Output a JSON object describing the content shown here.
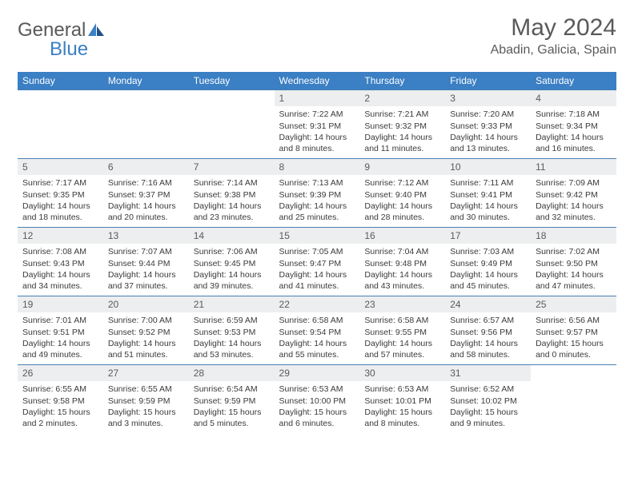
{
  "brand": {
    "general": "General",
    "blue": "Blue",
    "general_color": "#58595b",
    "blue_color": "#3b7fc4"
  },
  "header": {
    "title": "May 2024",
    "location": "Abadin, Galicia, Spain"
  },
  "colors": {
    "header_bg": "#3b7fc4",
    "header_fg": "#ffffff",
    "daynum_bg": "#edeeef",
    "daynum_fg": "#5a5a5a",
    "row_border": "#4a7fb5",
    "text": "#3a3a3a",
    "background": "#ffffff"
  },
  "typography": {
    "title_fontsize": 30,
    "location_fontsize": 16,
    "dayheader_fontsize": 12,
    "daynum_fontsize": 12,
    "body_fontsize": 10.5
  },
  "calendar": {
    "day_headers": [
      "Sunday",
      "Monday",
      "Tuesday",
      "Wednesday",
      "Thursday",
      "Friday",
      "Saturday"
    ],
    "weeks": [
      [
        null,
        null,
        null,
        {
          "n": "1",
          "sunrise": "Sunrise: 7:22 AM",
          "sunset": "Sunset: 9:31 PM",
          "daylight": "Daylight: 14 hours and 8 minutes."
        },
        {
          "n": "2",
          "sunrise": "Sunrise: 7:21 AM",
          "sunset": "Sunset: 9:32 PM",
          "daylight": "Daylight: 14 hours and 11 minutes."
        },
        {
          "n": "3",
          "sunrise": "Sunrise: 7:20 AM",
          "sunset": "Sunset: 9:33 PM",
          "daylight": "Daylight: 14 hours and 13 minutes."
        },
        {
          "n": "4",
          "sunrise": "Sunrise: 7:18 AM",
          "sunset": "Sunset: 9:34 PM",
          "daylight": "Daylight: 14 hours and 16 minutes."
        }
      ],
      [
        {
          "n": "5",
          "sunrise": "Sunrise: 7:17 AM",
          "sunset": "Sunset: 9:35 PM",
          "daylight": "Daylight: 14 hours and 18 minutes."
        },
        {
          "n": "6",
          "sunrise": "Sunrise: 7:16 AM",
          "sunset": "Sunset: 9:37 PM",
          "daylight": "Daylight: 14 hours and 20 minutes."
        },
        {
          "n": "7",
          "sunrise": "Sunrise: 7:14 AM",
          "sunset": "Sunset: 9:38 PM",
          "daylight": "Daylight: 14 hours and 23 minutes."
        },
        {
          "n": "8",
          "sunrise": "Sunrise: 7:13 AM",
          "sunset": "Sunset: 9:39 PM",
          "daylight": "Daylight: 14 hours and 25 minutes."
        },
        {
          "n": "9",
          "sunrise": "Sunrise: 7:12 AM",
          "sunset": "Sunset: 9:40 PM",
          "daylight": "Daylight: 14 hours and 28 minutes."
        },
        {
          "n": "10",
          "sunrise": "Sunrise: 7:11 AM",
          "sunset": "Sunset: 9:41 PM",
          "daylight": "Daylight: 14 hours and 30 minutes."
        },
        {
          "n": "11",
          "sunrise": "Sunrise: 7:09 AM",
          "sunset": "Sunset: 9:42 PM",
          "daylight": "Daylight: 14 hours and 32 minutes."
        }
      ],
      [
        {
          "n": "12",
          "sunrise": "Sunrise: 7:08 AM",
          "sunset": "Sunset: 9:43 PM",
          "daylight": "Daylight: 14 hours and 34 minutes."
        },
        {
          "n": "13",
          "sunrise": "Sunrise: 7:07 AM",
          "sunset": "Sunset: 9:44 PM",
          "daylight": "Daylight: 14 hours and 37 minutes."
        },
        {
          "n": "14",
          "sunrise": "Sunrise: 7:06 AM",
          "sunset": "Sunset: 9:45 PM",
          "daylight": "Daylight: 14 hours and 39 minutes."
        },
        {
          "n": "15",
          "sunrise": "Sunrise: 7:05 AM",
          "sunset": "Sunset: 9:47 PM",
          "daylight": "Daylight: 14 hours and 41 minutes."
        },
        {
          "n": "16",
          "sunrise": "Sunrise: 7:04 AM",
          "sunset": "Sunset: 9:48 PM",
          "daylight": "Daylight: 14 hours and 43 minutes."
        },
        {
          "n": "17",
          "sunrise": "Sunrise: 7:03 AM",
          "sunset": "Sunset: 9:49 PM",
          "daylight": "Daylight: 14 hours and 45 minutes."
        },
        {
          "n": "18",
          "sunrise": "Sunrise: 7:02 AM",
          "sunset": "Sunset: 9:50 PM",
          "daylight": "Daylight: 14 hours and 47 minutes."
        }
      ],
      [
        {
          "n": "19",
          "sunrise": "Sunrise: 7:01 AM",
          "sunset": "Sunset: 9:51 PM",
          "daylight": "Daylight: 14 hours and 49 minutes."
        },
        {
          "n": "20",
          "sunrise": "Sunrise: 7:00 AM",
          "sunset": "Sunset: 9:52 PM",
          "daylight": "Daylight: 14 hours and 51 minutes."
        },
        {
          "n": "21",
          "sunrise": "Sunrise: 6:59 AM",
          "sunset": "Sunset: 9:53 PM",
          "daylight": "Daylight: 14 hours and 53 minutes."
        },
        {
          "n": "22",
          "sunrise": "Sunrise: 6:58 AM",
          "sunset": "Sunset: 9:54 PM",
          "daylight": "Daylight: 14 hours and 55 minutes."
        },
        {
          "n": "23",
          "sunrise": "Sunrise: 6:58 AM",
          "sunset": "Sunset: 9:55 PM",
          "daylight": "Daylight: 14 hours and 57 minutes."
        },
        {
          "n": "24",
          "sunrise": "Sunrise: 6:57 AM",
          "sunset": "Sunset: 9:56 PM",
          "daylight": "Daylight: 14 hours and 58 minutes."
        },
        {
          "n": "25",
          "sunrise": "Sunrise: 6:56 AM",
          "sunset": "Sunset: 9:57 PM",
          "daylight": "Daylight: 15 hours and 0 minutes."
        }
      ],
      [
        {
          "n": "26",
          "sunrise": "Sunrise: 6:55 AM",
          "sunset": "Sunset: 9:58 PM",
          "daylight": "Daylight: 15 hours and 2 minutes."
        },
        {
          "n": "27",
          "sunrise": "Sunrise: 6:55 AM",
          "sunset": "Sunset: 9:59 PM",
          "daylight": "Daylight: 15 hours and 3 minutes."
        },
        {
          "n": "28",
          "sunrise": "Sunrise: 6:54 AM",
          "sunset": "Sunset: 9:59 PM",
          "daylight": "Daylight: 15 hours and 5 minutes."
        },
        {
          "n": "29",
          "sunrise": "Sunrise: 6:53 AM",
          "sunset": "Sunset: 10:00 PM",
          "daylight": "Daylight: 15 hours and 6 minutes."
        },
        {
          "n": "30",
          "sunrise": "Sunrise: 6:53 AM",
          "sunset": "Sunset: 10:01 PM",
          "daylight": "Daylight: 15 hours and 8 minutes."
        },
        {
          "n": "31",
          "sunrise": "Sunrise: 6:52 AM",
          "sunset": "Sunset: 10:02 PM",
          "daylight": "Daylight: 15 hours and 9 minutes."
        },
        null
      ]
    ]
  }
}
